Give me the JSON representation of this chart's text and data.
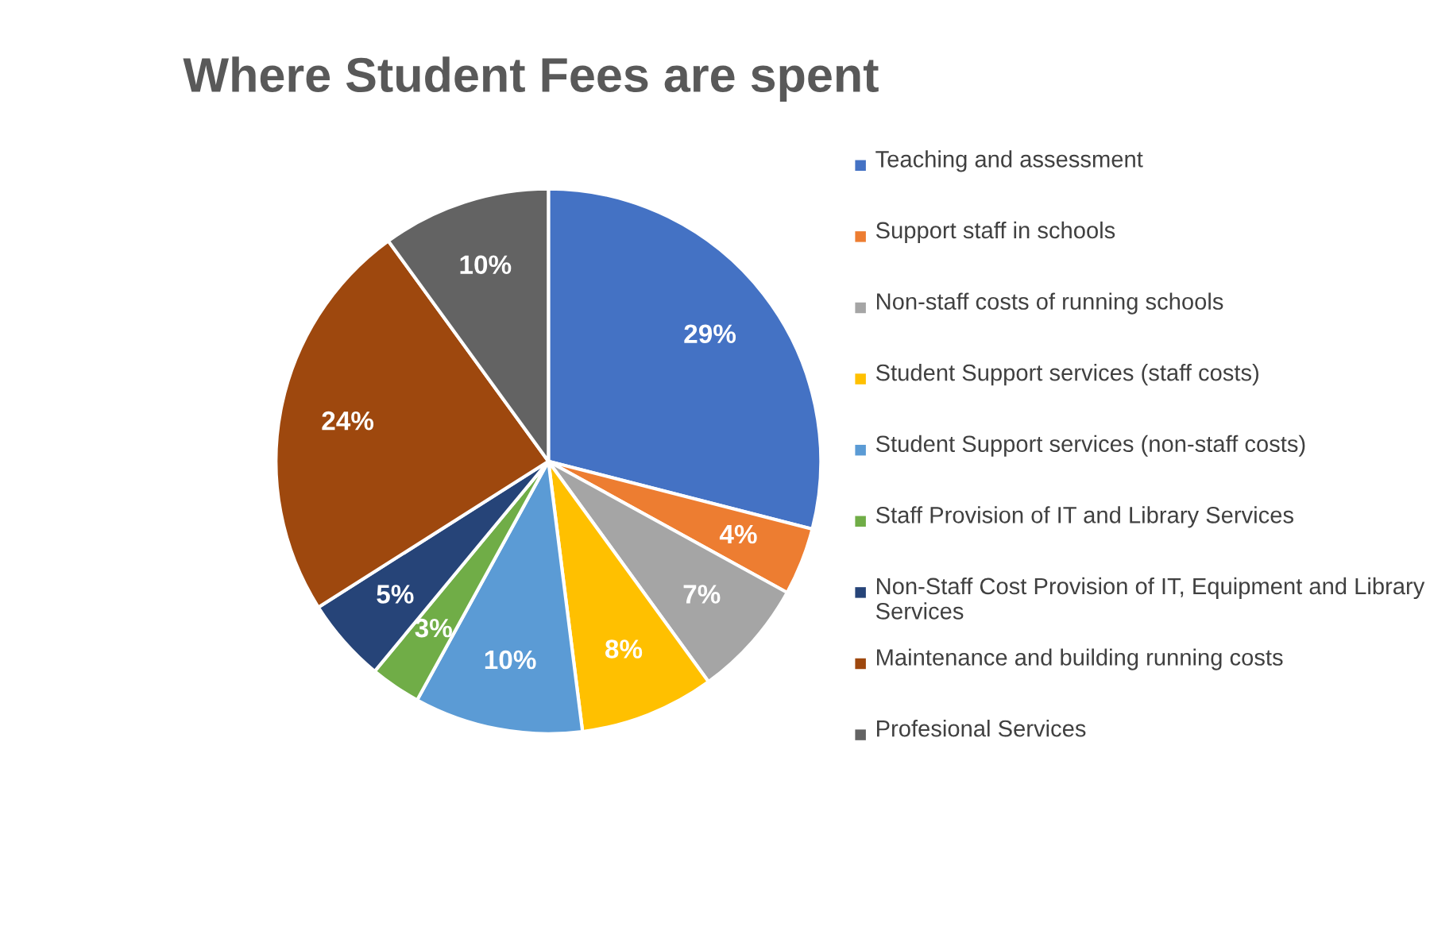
{
  "chart_data": {
    "type": "pie",
    "title": "Where Student Fees are spent",
    "categories": [
      "Teaching and assessment",
      "Support staff in schools",
      "Non-staff costs of running schools",
      "Student Support services (staff costs)",
      "Student Support services (non-staff costs)",
      "Staff Provision of IT and Library Services",
      "Non-Staff Cost Provision of IT, Equipment and Library Services",
      "Maintenance and building running costs",
      "Profesional Services"
    ],
    "values": [
      29,
      4,
      7,
      8,
      10,
      3,
      5,
      24,
      10
    ],
    "value_labels": [
      "29%",
      "4%",
      "7%",
      "8%",
      "10%",
      "3%",
      "5%",
      "24%",
      "10%"
    ],
    "colors": [
      "#4472c4",
      "#ed7d31",
      "#a5a5a5",
      "#ffc000",
      "#5b9bd5",
      "#70ad47",
      "#264478",
      "#9e480e",
      "#636363"
    ],
    "legend": "right"
  }
}
